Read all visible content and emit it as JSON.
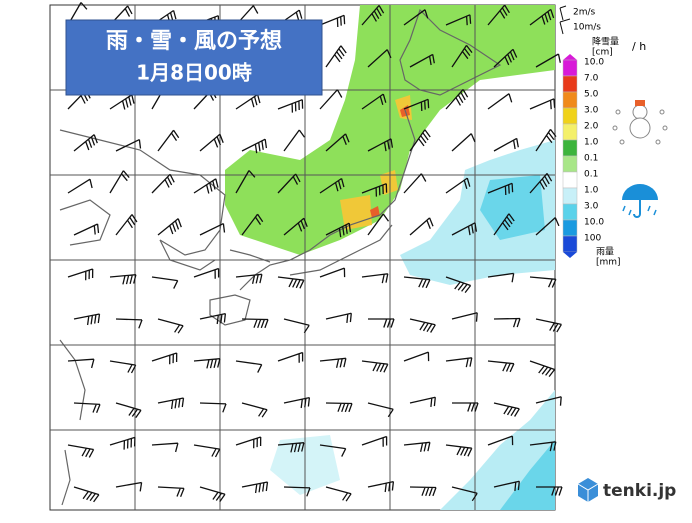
{
  "header": {
    "title": "雨・雪・風の予想",
    "time": "1月8日00時"
  },
  "wind_legend": {
    "short": "2m/s",
    "long": "10m/s"
  },
  "legend": {
    "snow_title": "降雪量",
    "snow_unit": "[cm]",
    "per_hour": "/ h",
    "snow_labels": [
      "10.0",
      "7.0",
      "5.0",
      "3.0",
      "2.0",
      "1.0",
      "0.1"
    ],
    "rain_labels": [
      "0.1",
      "1.0",
      "3.0",
      "10.0",
      "100"
    ],
    "rain_title": "雨量",
    "rain_unit": "[mm]"
  },
  "brand": "tenki.jp"
}
